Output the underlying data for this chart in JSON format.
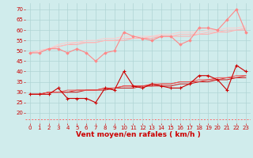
{
  "x": [
    0,
    1,
    2,
    3,
    4,
    5,
    6,
    7,
    8,
    9,
    10,
    11,
    12,
    13,
    14,
    15,
    16,
    17,
    18,
    19,
    20,
    21,
    22,
    23
  ],
  "lines_upper": [
    {
      "color": "#ff8888",
      "lw": 0.8,
      "marker": "D",
      "markersize": 1.8,
      "values": [
        49,
        49,
        51,
        51,
        49,
        51,
        49,
        45,
        49,
        50,
        59,
        57,
        56,
        55,
        57,
        57,
        53,
        55,
        61,
        61,
        60,
        65,
        70,
        59
      ]
    },
    {
      "color": "#ffaaaa",
      "lw": 0.7,
      "marker": null,
      "values": [
        49,
        50,
        51,
        52,
        53,
        53,
        54,
        54,
        55,
        55,
        55,
        56,
        56,
        56,
        57,
        57,
        57,
        57,
        58,
        58,
        59,
        59,
        60,
        60
      ]
    },
    {
      "color": "#ffbbbb",
      "lw": 0.7,
      "marker": null,
      "values": [
        49,
        50,
        51,
        52,
        53,
        54,
        54,
        54,
        55,
        55,
        56,
        56,
        56,
        57,
        57,
        57,
        58,
        58,
        58,
        59,
        59,
        60,
        60,
        61
      ]
    },
    {
      "color": "#ffcccc",
      "lw": 0.7,
      "marker": null,
      "values": [
        49,
        50,
        51,
        53,
        54,
        54,
        55,
        55,
        56,
        56,
        57,
        57,
        57,
        57,
        58,
        58,
        59,
        59,
        59,
        60,
        60,
        61,
        61,
        62
      ]
    }
  ],
  "lines_lower": [
    {
      "color": "#cc0000",
      "lw": 0.8,
      "marker": "+",
      "markersize": 2.5,
      "values": [
        29,
        29,
        29,
        32,
        27,
        27,
        27,
        25,
        32,
        31,
        40,
        33,
        32,
        34,
        33,
        32,
        32,
        34,
        38,
        38,
        36,
        31,
        43,
        40
      ]
    },
    {
      "color": "#cc1111",
      "lw": 0.7,
      "marker": null,
      "values": [
        29,
        29,
        30,
        30,
        30,
        30,
        31,
        31,
        31,
        32,
        32,
        32,
        33,
        33,
        33,
        33,
        34,
        34,
        35,
        35,
        36,
        36,
        37,
        37
      ]
    },
    {
      "color": "#dd3333",
      "lw": 0.7,
      "marker": null,
      "values": [
        29,
        29,
        30,
        30,
        30,
        31,
        31,
        31,
        32,
        32,
        33,
        33,
        33,
        33,
        34,
        34,
        35,
        35,
        35,
        36,
        36,
        37,
        37,
        38
      ]
    },
    {
      "color": "#ee5555",
      "lw": 0.7,
      "marker": null,
      "values": [
        29,
        29,
        30,
        30,
        31,
        31,
        31,
        31,
        32,
        32,
        33,
        33,
        33,
        34,
        34,
        34,
        35,
        35,
        36,
        36,
        37,
        37,
        38,
        38
      ]
    }
  ],
  "dashed_line_y": 17,
  "dashed_color": "#ff6666",
  "xlabel": "Vent moyen/en rafales ( km/h )",
  "xlim": [
    -0.5,
    23.5
  ],
  "ylim": [
    15,
    73
  ],
  "yticks": [
    20,
    25,
    30,
    35,
    40,
    45,
    50,
    55,
    60,
    65,
    70
  ],
  "xticks": [
    0,
    1,
    2,
    3,
    4,
    5,
    6,
    7,
    8,
    9,
    10,
    11,
    12,
    13,
    14,
    15,
    16,
    17,
    18,
    19,
    20,
    21,
    22,
    23
  ],
  "background_color": "#d0ecec",
  "grid_color": "#b0d4d4",
  "tick_color": "#cc0000",
  "xlabel_color": "#cc0000",
  "tick_fontsize": 5.0,
  "xlabel_fontsize": 6.5
}
